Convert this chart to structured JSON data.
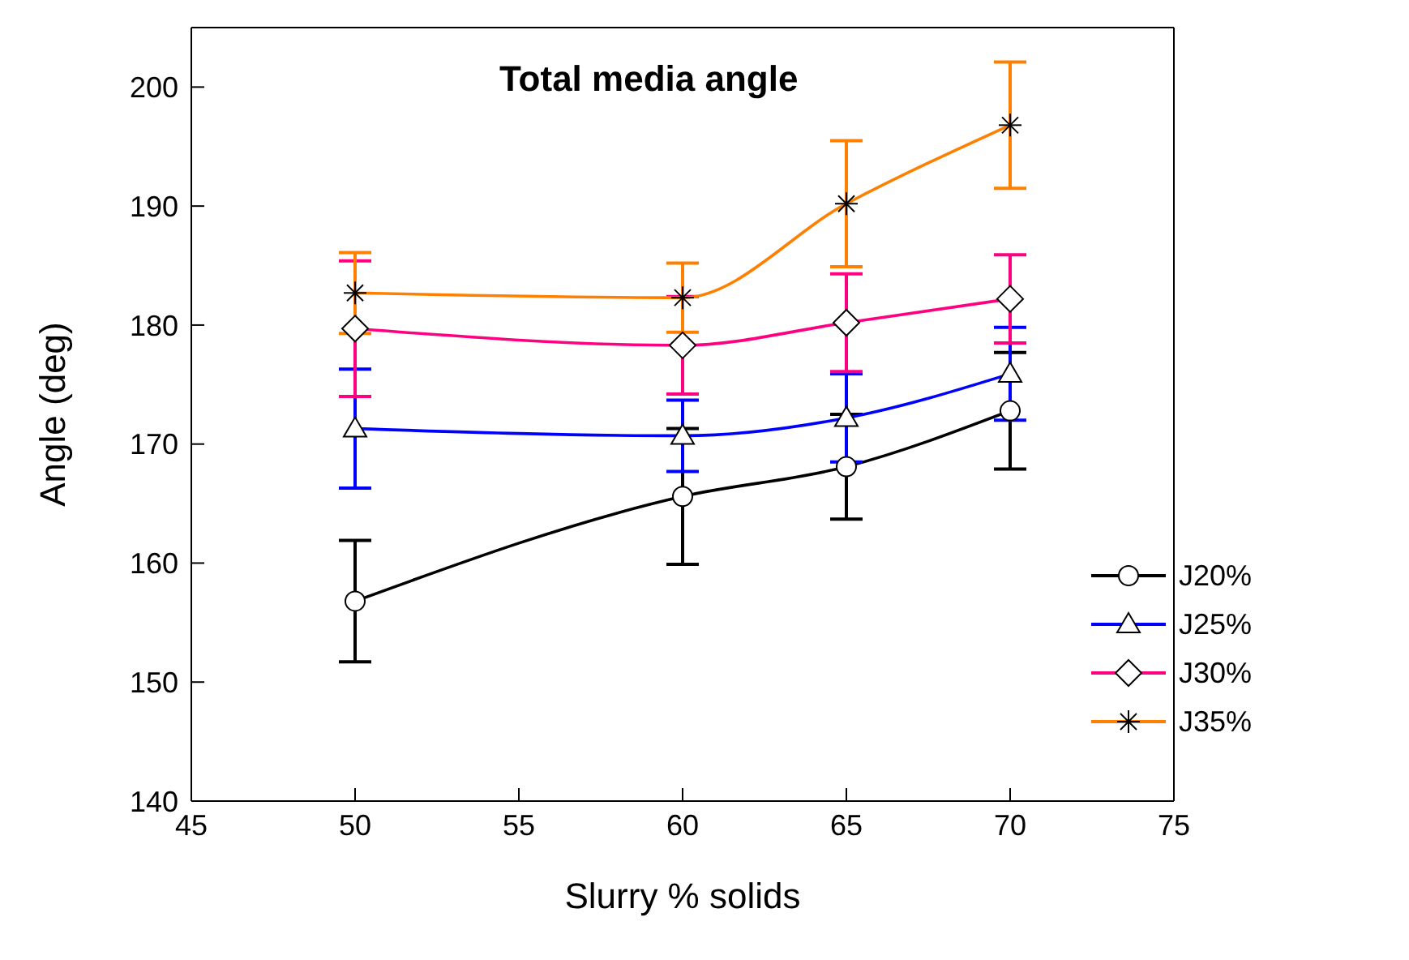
{
  "chart_data": {
    "type": "line",
    "title": "Total media angle",
    "xlabel": "Slurry % solids",
    "ylabel": "Angle (deg)",
    "x": [
      50,
      60,
      65,
      70
    ],
    "series": [
      {
        "name": "J20%",
        "color": "#000000",
        "marker": "circle",
        "values": [
          156.8,
          165.6,
          168.1,
          172.8
        ],
        "errors": [
          5.1,
          5.7,
          4.4,
          4.9
        ]
      },
      {
        "name": "J25%",
        "color": "#0000ff",
        "marker": "triangle",
        "values": [
          171.3,
          170.7,
          172.2,
          175.9
        ],
        "errors": [
          5,
          3,
          3.7,
          3.9
        ]
      },
      {
        "name": "J30%",
        "color": "#ff0080",
        "marker": "diamond",
        "values": [
          179.7,
          178.3,
          180.2,
          182.2
        ],
        "errors": [
          5.7,
          4.1,
          4.1,
          3.7
        ]
      },
      {
        "name": "J35%",
        "color": "#ff8000",
        "marker": "cross",
        "values": [
          182.7,
          182.3,
          190.2,
          196.8
        ],
        "errors": [
          3.4,
          2.9,
          5.3,
          5.3
        ]
      }
    ],
    "xlim": [
      45,
      75
    ],
    "xticks": [
      45,
      50,
      55,
      60,
      65,
      70,
      75
    ],
    "ylim": [
      140,
      205
    ],
    "yticks": [
      140,
      150,
      160,
      170,
      180,
      190,
      200
    ],
    "grid": false,
    "legend": "bottom right",
    "line_style": "solid"
  }
}
